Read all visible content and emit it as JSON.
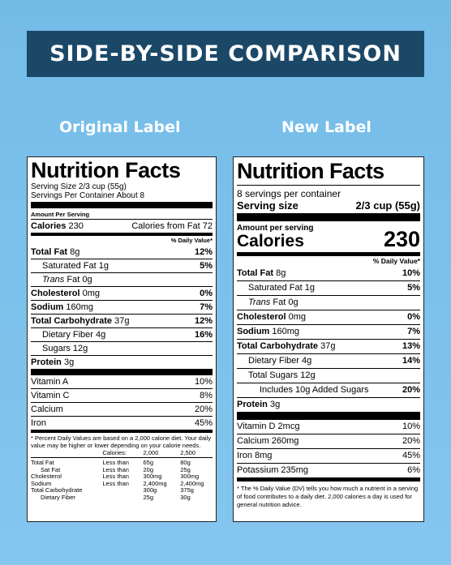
{
  "banner": "SIDE-BY-SIDE COMPARISON",
  "original": {
    "heading": "Original Label",
    "title": "Nutrition Facts",
    "serving_size": "Serving Size 2/3 cup (55g)",
    "servings_per_container": "Servings Per Container About 8",
    "amount_per_serving": "Amount Per Serving",
    "calories_label": "Calories",
    "calories_value": "230",
    "calories_from_fat": "Calories from Fat 72",
    "dv_header": "% Daily Value*",
    "nutrients": [
      {
        "name": "Total Fat",
        "amount": "8g",
        "dv": "12%",
        "bold": true,
        "indent": 0
      },
      {
        "name": "Saturated Fat",
        "amount": "1g",
        "dv": "5%",
        "bold": false,
        "indent": 1
      },
      {
        "name": "Trans",
        "amount": "Fat 0g",
        "dv": "",
        "bold": false,
        "indent": 1,
        "italic": true
      },
      {
        "name": "Cholesterol",
        "amount": "0mg",
        "dv": "0%",
        "bold": true,
        "indent": 0
      },
      {
        "name": "Sodium",
        "amount": "160mg",
        "dv": "7%",
        "bold": true,
        "indent": 0
      },
      {
        "name": "Total Carbohydrate",
        "amount": "37g",
        "dv": "12%",
        "bold": true,
        "indent": 0
      },
      {
        "name": "Dietary Fiber",
        "amount": "4g",
        "dv": "16%",
        "bold": false,
        "indent": 1
      },
      {
        "name": "Sugars",
        "amount": "12g",
        "dv": "",
        "bold": false,
        "indent": 1
      },
      {
        "name": "Protein",
        "amount": "3g",
        "dv": "",
        "bold": true,
        "indent": 0
      }
    ],
    "vitamins": [
      {
        "name": "Vitamin A",
        "dv": "10%"
      },
      {
        "name": "Vitamin C",
        "dv": "8%"
      },
      {
        "name": "Calcium",
        "dv": "20%"
      },
      {
        "name": "Iron",
        "dv": "45%"
      }
    ],
    "footnote": "* Percent Daily Values are based on a 2,000 calorie diet. Your daily value may be higher or lower depending on your calorie needs.",
    "footer_table": {
      "header": [
        "",
        "Calories:",
        "2,000",
        "2,500"
      ],
      "rows": [
        [
          "Total Fat",
          "Less than",
          "65g",
          "80g"
        ],
        [
          "Sat Fat",
          "Less than",
          "20g",
          "25g"
        ],
        [
          "Cholesterol",
          "Less than",
          "300mg",
          "300mg"
        ],
        [
          "Sodium",
          "Less than",
          "2,400mg",
          "2,400mg"
        ],
        [
          "Total Carbohydrate",
          "",
          "300g",
          "375g"
        ],
        [
          "Dietary Fiber",
          "",
          "25g",
          "30g"
        ]
      ]
    }
  },
  "new": {
    "heading": "New Label",
    "title": "Nutrition Facts",
    "servings_per_container": "8 servings per container",
    "serving_size_label": "Serving size",
    "serving_size_value": "2/3 cup (55g)",
    "amount_per_serving": "Amount per serving",
    "calories_label": "Calories",
    "calories_value": "230",
    "dv_header": "% Daily Value*",
    "nutrients": [
      {
        "name": "Total Fat",
        "amount": "8g",
        "dv": "10%",
        "bold": true,
        "indent": 0
      },
      {
        "name": "Saturated Fat",
        "amount": "1g",
        "dv": "5%",
        "bold": false,
        "indent": 1
      },
      {
        "name": "Trans",
        "amount": "Fat 0g",
        "dv": "",
        "bold": false,
        "indent": 1,
        "italic": true
      },
      {
        "name": "Cholesterol",
        "amount": "0mg",
        "dv": "0%",
        "bold": true,
        "indent": 0
      },
      {
        "name": "Sodium",
        "amount": "160mg",
        "dv": "7%",
        "bold": true,
        "indent": 0
      },
      {
        "name": "Total Carbohydrate",
        "amount": "37g",
        "dv": "13%",
        "bold": true,
        "indent": 0
      },
      {
        "name": "Dietary Fiber",
        "amount": "4g",
        "dv": "14%",
        "bold": false,
        "indent": 1
      },
      {
        "name": "Total Sugars",
        "amount": "12g",
        "dv": "",
        "bold": false,
        "indent": 1
      },
      {
        "name": "Includes 10g Added Sugars",
        "amount": "",
        "dv": "20%",
        "bold": false,
        "indent": 2
      },
      {
        "name": "Protein",
        "amount": "3g",
        "dv": "",
        "bold": true,
        "indent": 0
      }
    ],
    "vitamins": [
      {
        "name": "Vitamin D 2mcg",
        "dv": "10%"
      },
      {
        "name": "Calcium 260mg",
        "dv": "20%"
      },
      {
        "name": "Iron 8mg",
        "dv": "45%"
      },
      {
        "name": "Potassium 235mg",
        "dv": "6%"
      }
    ],
    "footnote": "* The % Daily Value (DV) tells you how much a nutrient in a serving of food contributes to a daily diet. 2,000 calories a day is used for general nutrition advice."
  }
}
